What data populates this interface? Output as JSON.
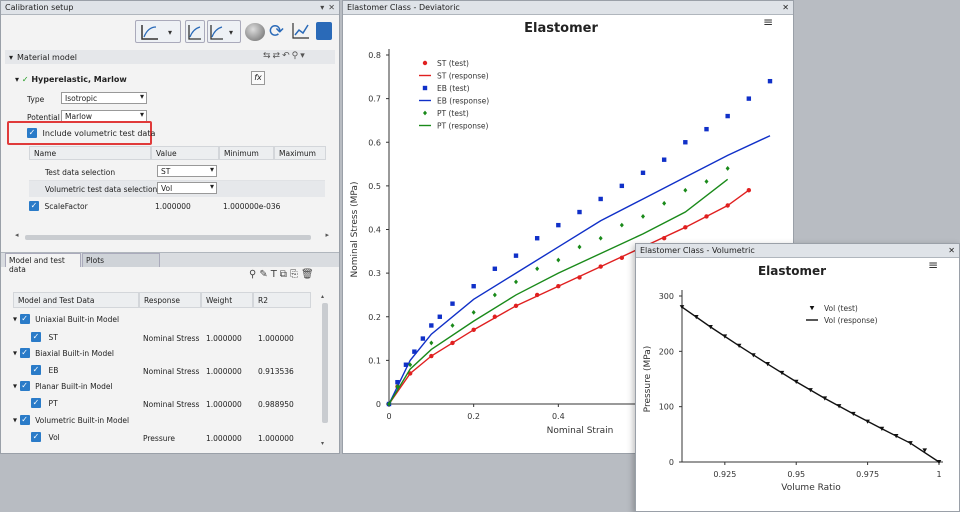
{
  "calibration": {
    "title": "Calibration setup",
    "material_model_label": "Material model",
    "model_name": "Hyperelastic, Marlow",
    "fx_label": "fx",
    "type_label": "Type",
    "type_value": "Isotropic",
    "potential_label": "Potential",
    "potential_value": "Marlow",
    "include_volumetric_label": "Include volumetric test data",
    "grid_headers": [
      "Name",
      "Value",
      "Minimum",
      "Maximum"
    ],
    "rows": [
      {
        "name": "Test data selection",
        "value": "ST"
      },
      {
        "name": "Volumetric test data selection",
        "value": "Vol"
      },
      {
        "name": "ScaleFactor",
        "value": "1.000000",
        "minimum": "1.000000e-036"
      }
    ]
  },
  "tabs": [
    "Model and test data",
    "Plots"
  ],
  "model_table": {
    "headers": [
      "Model and Test Data",
      "Response",
      "Weight",
      "R2"
    ],
    "groups": [
      {
        "model": "Uniaxial Built-in Model",
        "test": "ST",
        "response": "Nominal Stress",
        "weight": "1.000000",
        "r2": "1.000000"
      },
      {
        "model": "Biaxial Built-in Model",
        "test": "EB",
        "response": "Nominal Stress",
        "weight": "1.000000",
        "r2": "0.913536"
      },
      {
        "model": "Planar Built-in Model",
        "test": "PT",
        "response": "Nominal Stress",
        "weight": "1.000000",
        "r2": "0.988950"
      },
      {
        "model": "Volumetric Built-in Model",
        "test": "Vol",
        "response": "Pressure",
        "weight": "1.000000",
        "r2": "1.000000"
      }
    ]
  },
  "deviatoric": {
    "window_title": "Elastomer Class - Deviatoric",
    "close": "✕"
  },
  "volumetric": {
    "window_title": "Elastomer Class - Volumetric",
    "close": "✕"
  },
  "icons": {
    "close": "✕",
    "menu": "≡",
    "check": "✓",
    "expand": "▾"
  },
  "chart_data": [
    {
      "type": "line",
      "title": "Elastomer",
      "xlabel": "Nominal Strain",
      "ylabel": "Nominal Stress (MPa)",
      "xlim": [
        0,
        0.9
      ],
      "ylim": [
        0,
        0.8
      ],
      "xticks": [
        "0",
        "0.2",
        "0.4"
      ],
      "yticks": [
        "0",
        "0.1",
        "0.2",
        "0.3",
        "0.4",
        "0.5",
        "0.6",
        "0.7",
        "0.8"
      ],
      "series": [
        {
          "name": "ST (test)",
          "style": "points",
          "marker": "circle",
          "color": "#e02020",
          "x": [
            0,
            0.02,
            0.05,
            0.1,
            0.15,
            0.2,
            0.25,
            0.3,
            0.35,
            0.4,
            0.45,
            0.5,
            0.55,
            0.6,
            0.65,
            0.7,
            0.75,
            0.8,
            0.85
          ],
          "y": [
            0,
            0.04,
            0.07,
            0.11,
            0.14,
            0.17,
            0.2,
            0.225,
            0.25,
            0.27,
            0.29,
            0.315,
            0.335,
            0.36,
            0.38,
            0.405,
            0.43,
            0.455,
            0.49
          ]
        },
        {
          "name": "ST (response)",
          "style": "line",
          "color": "#e02020",
          "x": [
            0,
            0.05,
            0.1,
            0.2,
            0.3,
            0.4,
            0.5,
            0.6,
            0.7,
            0.8,
            0.85
          ],
          "y": [
            0,
            0.07,
            0.11,
            0.17,
            0.225,
            0.27,
            0.315,
            0.36,
            0.405,
            0.455,
            0.49
          ]
        },
        {
          "name": "EB (test)",
          "style": "points",
          "marker": "square",
          "color": "#1030c8",
          "x": [
            0,
            0.02,
            0.04,
            0.06,
            0.08,
            0.1,
            0.12,
            0.15,
            0.2,
            0.25,
            0.3,
            0.35,
            0.4,
            0.45,
            0.5,
            0.55,
            0.6,
            0.65,
            0.7,
            0.75,
            0.8,
            0.85,
            0.9
          ],
          "y": [
            0,
            0.05,
            0.09,
            0.12,
            0.15,
            0.18,
            0.2,
            0.23,
            0.27,
            0.31,
            0.34,
            0.38,
            0.41,
            0.44,
            0.47,
            0.5,
            0.53,
            0.56,
            0.6,
            0.63,
            0.66,
            0.7,
            0.74
          ]
        },
        {
          "name": "EB (response)",
          "style": "line",
          "color": "#1030c8",
          "x": [
            0,
            0.05,
            0.1,
            0.2,
            0.3,
            0.4,
            0.5,
            0.6,
            0.7,
            0.8,
            0.9
          ],
          "y": [
            0,
            0.1,
            0.16,
            0.24,
            0.3,
            0.36,
            0.42,
            0.47,
            0.52,
            0.57,
            0.615
          ]
        },
        {
          "name": "PT (test)",
          "style": "points",
          "marker": "diamond",
          "color": "#1a8a1a",
          "x": [
            0,
            0.02,
            0.05,
            0.1,
            0.15,
            0.2,
            0.25,
            0.3,
            0.35,
            0.4,
            0.45,
            0.5,
            0.55,
            0.6,
            0.65,
            0.7,
            0.75,
            0.8
          ],
          "y": [
            0,
            0.04,
            0.09,
            0.14,
            0.18,
            0.21,
            0.25,
            0.28,
            0.31,
            0.33,
            0.36,
            0.38,
            0.41,
            0.43,
            0.46,
            0.49,
            0.51,
            0.54
          ]
        },
        {
          "name": "PT (response)",
          "style": "line",
          "color": "#1a8a1a",
          "x": [
            0,
            0.05,
            0.1,
            0.2,
            0.3,
            0.4,
            0.5,
            0.6,
            0.7,
            0.8
          ],
          "y": [
            0,
            0.08,
            0.125,
            0.19,
            0.25,
            0.3,
            0.345,
            0.39,
            0.44,
            0.515
          ]
        }
      ]
    },
    {
      "type": "line",
      "title": "Elastomer",
      "xlabel": "Volume Ratio",
      "ylabel": "Pressure (MPa)",
      "xlim": [
        0.91,
        1.0
      ],
      "ylim": [
        0,
        300
      ],
      "xticks": [
        "0.925",
        "0.95",
        "0.975",
        "1"
      ],
      "yticks": [
        "0",
        "100",
        "200",
        "300"
      ],
      "series": [
        {
          "name": "Vol (test)",
          "style": "points",
          "marker": "triangle",
          "color": "#111111",
          "x": [
            0.91,
            0.915,
            0.92,
            0.925,
            0.93,
            0.935,
            0.94,
            0.945,
            0.95,
            0.955,
            0.96,
            0.965,
            0.97,
            0.975,
            0.98,
            0.985,
            0.99,
            0.995,
            1.0
          ],
          "y": [
            280,
            262,
            244,
            227,
            210,
            193,
            177,
            161,
            145,
            130,
            115,
            101,
            87,
            73,
            60,
            47,
            34,
            21,
            0
          ]
        },
        {
          "name": "Vol (response)",
          "style": "line",
          "color": "#111111",
          "x": [
            0.91,
            0.92,
            0.93,
            0.94,
            0.95,
            0.96,
            0.97,
            0.98,
            0.99,
            1.0
          ],
          "y": [
            280,
            244,
            210,
            177,
            145,
            115,
            87,
            60,
            34,
            0
          ]
        }
      ]
    }
  ]
}
